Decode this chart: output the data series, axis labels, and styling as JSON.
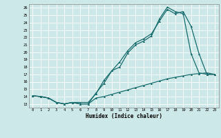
{
  "xlabel": "Humidex (Indice chaleur)",
  "xlim": [
    -0.5,
    23.5
  ],
  "ylim": [
    12.5,
    26.5
  ],
  "xticks": [
    0,
    1,
    2,
    3,
    4,
    5,
    6,
    7,
    8,
    9,
    10,
    11,
    12,
    13,
    14,
    15,
    16,
    17,
    18,
    19,
    20,
    21,
    22,
    23
  ],
  "yticks": [
    13,
    14,
    15,
    16,
    17,
    18,
    19,
    20,
    21,
    22,
    23,
    24,
    25,
    26
  ],
  "bg_color": "#cce8e8",
  "line_color": "#1a6b6b",
  "line1_y": [
    14.1,
    14.0,
    13.8,
    13.2,
    13.0,
    13.2,
    13.0,
    13.0,
    14.5,
    15.8,
    17.5,
    18.0,
    19.9,
    21.0,
    21.5,
    22.2,
    24.5,
    26.1,
    25.5,
    25.2,
    19.8,
    17.2,
    17.0,
    17.0
  ],
  "line2_y": [
    14.1,
    14.0,
    13.8,
    13.2,
    13.0,
    13.2,
    13.2,
    13.2,
    14.4,
    16.2,
    17.5,
    18.7,
    20.2,
    21.3,
    21.8,
    22.5,
    24.2,
    25.8,
    25.2,
    25.5,
    23.5,
    19.8,
    17.0,
    17.0
  ],
  "line3_y": [
    14.1,
    14.0,
    13.8,
    13.2,
    13.0,
    13.2,
    13.0,
    13.0,
    13.8,
    14.0,
    14.3,
    14.6,
    14.9,
    15.2,
    15.5,
    15.8,
    16.1,
    16.4,
    16.6,
    16.8,
    17.0,
    17.1,
    17.2,
    17.0
  ]
}
